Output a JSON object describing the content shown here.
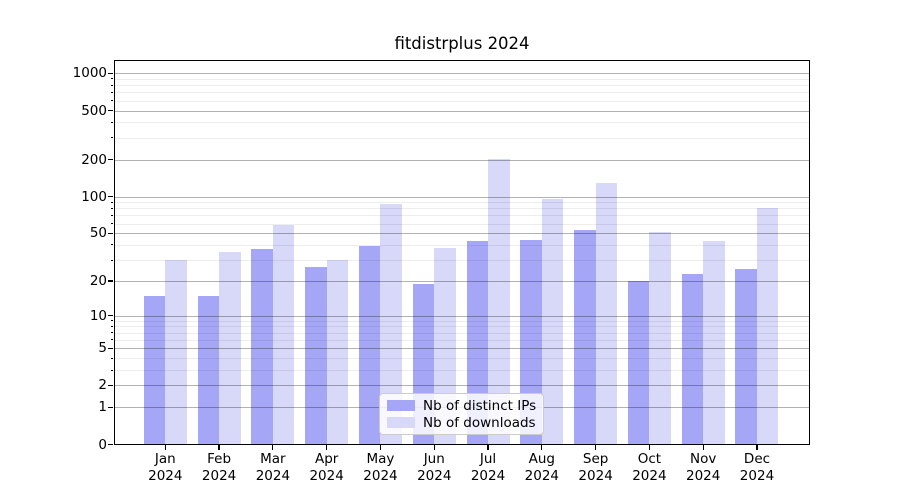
{
  "chart_data": {
    "type": "bar",
    "title": "fitdistrplus 2024",
    "categories": [
      "Jan 2024",
      "Feb 2024",
      "Mar 2024",
      "Apr 2024",
      "May 2024",
      "Jun 2024",
      "Jul 2024",
      "Aug 2024",
      "Sep 2024",
      "Oct 2024",
      "Nov 2024",
      "Dec 2024"
    ],
    "series": [
      {
        "name": "Nb of distinct IPs",
        "color": "#a6a6f6",
        "values": [
          15,
          15,
          37,
          26,
          39,
          19,
          43,
          44,
          53,
          20,
          23,
          25
        ]
      },
      {
        "name": "Nb of downloads",
        "color": "#d8d8f8",
        "values": [
          30,
          35,
          58,
          30,
          87,
          38,
          203,
          96,
          130,
          51,
          43,
          81
        ]
      }
    ],
    "xlabel": "",
    "ylabel": "",
    "yscale": "log10(value+1)",
    "yticks": [
      0,
      1,
      2,
      5,
      10,
      20,
      50,
      100,
      200,
      500,
      1000
    ],
    "ytick_labels": [
      "0",
      "1",
      "2",
      "5",
      "10",
      "20",
      "50",
      "100",
      "200",
      "500",
      "1000"
    ],
    "minor_gridlines": [
      3,
      4,
      6,
      7,
      8,
      9,
      30,
      40,
      60,
      70,
      80,
      90,
      300,
      400,
      600,
      700,
      800,
      900
    ],
    "ylim": [
      0,
      1282
    ],
    "grid": "horizontal major+minor, drawn over bars",
    "legend_position": "lower center inside axes",
    "bar_group": "paired, touching, 0.4 category width each"
  }
}
